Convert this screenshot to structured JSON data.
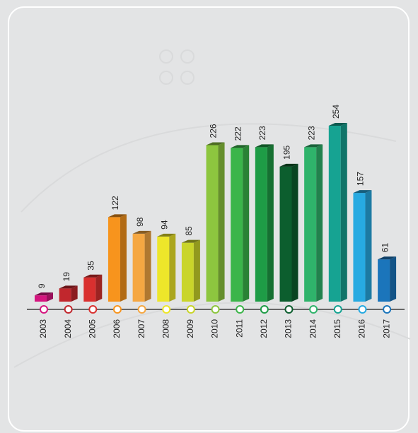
{
  "chart_data": {
    "type": "bar",
    "categories": [
      "2003",
      "2004",
      "2005",
      "2006",
      "2007",
      "2008",
      "2009",
      "2010",
      "2011",
      "2012",
      "2013",
      "2014",
      "2015",
      "2016",
      "2017"
    ],
    "values": [
      9,
      19,
      35,
      122,
      98,
      94,
      85,
      226,
      222,
      223,
      195,
      223,
      254,
      157,
      61
    ],
    "colors": [
      "#d4157f",
      "#c1272d",
      "#d9302f",
      "#f7941d",
      "#f5a742",
      "#ede62a",
      "#c9d52a",
      "#8dc63f",
      "#3bb54a",
      "#1e9c46",
      "#0c5e2e",
      "#2fb36b",
      "#16a392",
      "#27aae1",
      "#1b75bb"
    ]
  }
}
